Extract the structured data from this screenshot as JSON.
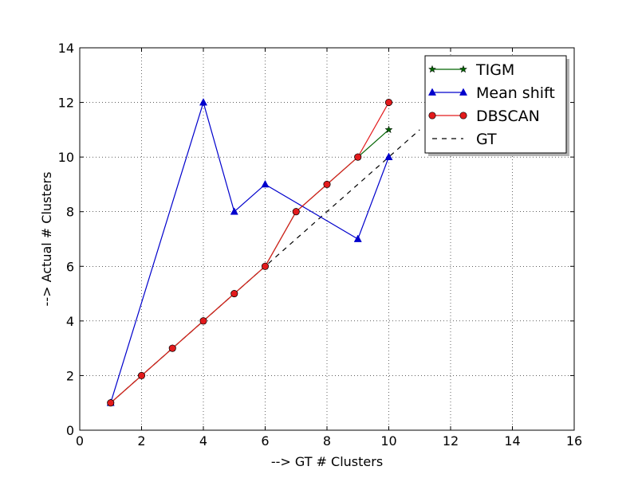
{
  "chart_data": {
    "type": "line",
    "xlabel": "--> GT # Clusters",
    "ylabel": "--> Actual # Clusters",
    "xlim": [
      0,
      16
    ],
    "ylim": [
      0,
      14
    ],
    "xticks": [
      0,
      2,
      4,
      6,
      8,
      10,
      12,
      14,
      16
    ],
    "yticks": [
      0,
      2,
      4,
      6,
      8,
      10,
      12,
      14
    ],
    "grid": true,
    "legend_position": "top-right",
    "series": [
      {
        "name": "TIGM",
        "color": "#006400",
        "marker": "star",
        "line": "solid",
        "x": [
          1,
          2,
          3,
          4,
          5,
          6,
          7,
          8,
          9,
          10
        ],
        "y": [
          1,
          2,
          3,
          4,
          5,
          6,
          8,
          9,
          10,
          11
        ]
      },
      {
        "name": "Mean shift",
        "color": "#0000cc",
        "marker": "triangle",
        "line": "solid",
        "x": [
          1,
          4,
          5,
          6,
          9,
          10
        ],
        "y": [
          1,
          12,
          8,
          9,
          7,
          10
        ]
      },
      {
        "name": "DBSCAN",
        "color": "#e31a1c",
        "marker": "circle",
        "line": "solid",
        "x": [
          1,
          2,
          3,
          4,
          5,
          6,
          7,
          8,
          9,
          10
        ],
        "y": [
          1,
          2,
          3,
          4,
          5,
          6,
          8,
          9,
          10,
          12
        ]
      },
      {
        "name": "GT",
        "color": "#000000",
        "marker": "none",
        "line": "dashed",
        "x": [
          1,
          11
        ],
        "y": [
          1,
          11
        ]
      }
    ]
  }
}
